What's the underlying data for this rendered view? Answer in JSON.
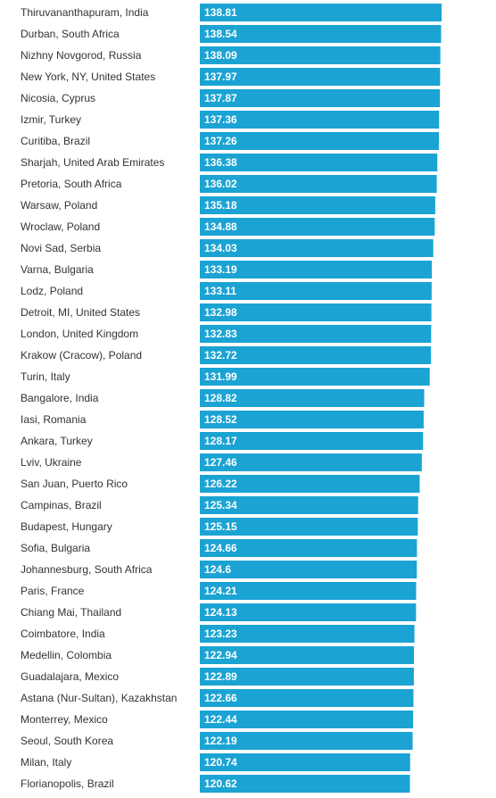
{
  "chart_data": {
    "type": "bar",
    "orientation": "horizontal",
    "bar_color": "#1ba3d3",
    "value_label_color": "#ffffff",
    "category_label_color": "#333333",
    "xlim": [
      0,
      138.81
    ],
    "grid": false,
    "legend": "none",
    "categories": [
      "Thiruvananthapuram, India",
      "Durban, South Africa",
      "Nizhny Novgorod, Russia",
      "New York, NY, United States",
      "Nicosia, Cyprus",
      "Izmir, Turkey",
      "Curitiba, Brazil",
      "Sharjah, United Arab Emirates",
      "Pretoria, South Africa",
      "Warsaw, Poland",
      "Wroclaw, Poland",
      "Novi Sad, Serbia",
      "Varna, Bulgaria",
      "Lodz, Poland",
      "Detroit, MI, United States",
      "London, United Kingdom",
      "Krakow (Cracow), Poland",
      "Turin, Italy",
      "Bangalore, India",
      "Iasi, Romania",
      "Ankara, Turkey",
      "Lviv, Ukraine",
      "San Juan, Puerto Rico",
      "Campinas, Brazil",
      "Budapest, Hungary",
      "Sofia, Bulgaria",
      "Johannesburg, South Africa",
      "Paris, France",
      "Chiang Mai, Thailand",
      "Coimbatore, India",
      "Medellin, Colombia",
      "Guadalajara, Mexico",
      "Astana (Nur-Sultan), Kazakhstan",
      "Monterrey, Mexico",
      "Seoul, South Korea",
      "Milan, Italy",
      "Florianopolis, Brazil"
    ],
    "values": [
      138.81,
      138.54,
      138.09,
      137.97,
      137.87,
      137.36,
      137.26,
      136.38,
      136.02,
      135.18,
      134.88,
      134.03,
      133.19,
      133.11,
      132.98,
      132.83,
      132.72,
      131.99,
      128.82,
      128.52,
      128.17,
      127.46,
      126.22,
      125.34,
      125.15,
      124.66,
      124.6,
      124.21,
      124.13,
      123.23,
      122.94,
      122.89,
      122.66,
      122.44,
      122.19,
      120.74,
      120.62
    ],
    "value_labels": [
      "138.81",
      "138.54",
      "138.09",
      "137.97",
      "137.87",
      "137.36",
      "137.26",
      "136.38",
      "136.02",
      "135.18",
      "134.88",
      "134.03",
      "133.19",
      "133.11",
      "132.98",
      "132.83",
      "132.72",
      "131.99",
      "128.82",
      "128.52",
      "128.17",
      "127.46",
      "126.22",
      "125.34",
      "125.15",
      "124.66",
      "124.6",
      "124.21",
      "124.13",
      "123.23",
      "122.94",
      "122.89",
      "122.66",
      "122.44",
      "122.19",
      "120.74",
      "120.62"
    ]
  }
}
